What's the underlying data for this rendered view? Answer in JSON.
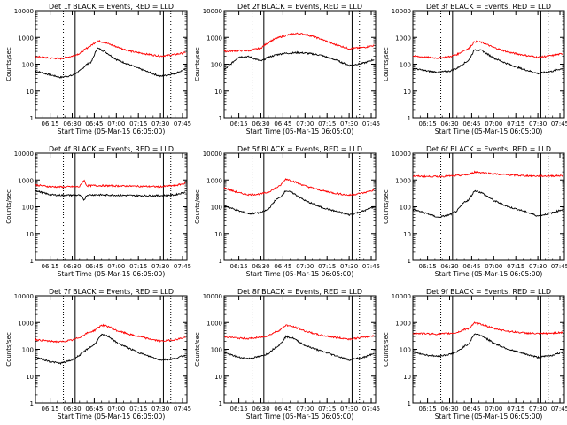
{
  "figure": {
    "xtick_labels": [
      "06:15",
      "06:30",
      "06:45",
      "07:00",
      "07:15",
      "07:30",
      "07:45"
    ],
    "ytick_labels": [
      "1",
      "10",
      "100",
      "1000",
      "10000"
    ],
    "ylabel": "Counts/sec",
    "xlabel": "Start Time (05-Mar-15 06:05:00)",
    "series_colors": {
      "Events": "#000000",
      "LLD": "#ff0000"
    },
    "scale": "log",
    "grid": false
  },
  "chart_data": [
    {
      "type": "line",
      "title": "Det 1f BLACK = Events, RED = LLD",
      "xlabel": "Start Time (05-Mar-15 06:05:00)",
      "ylabel": "Counts/sec",
      "yscale": "log",
      "ylim": [
        1,
        10000
      ],
      "xlim": [
        "06:05",
        "07:48"
      ],
      "vlines_dotted": [
        "06:24",
        "07:37"
      ],
      "vlines_solid": [
        "06:32",
        "07:32"
      ],
      "x": [
        "06:05",
        "06:15",
        "06:22",
        "06:30",
        "06:35",
        "06:40",
        "06:43",
        "06:47",
        "06:52",
        "07:00",
        "07:10",
        "07:20",
        "07:30",
        "07:40",
        "07:47"
      ],
      "series": [
        {
          "name": "Events",
          "values": [
            55,
            40,
            32,
            38,
            55,
            100,
            120,
            400,
            300,
            150,
            90,
            55,
            35,
            45,
            65
          ]
        },
        {
          "name": "LLD",
          "values": [
            190,
            170,
            160,
            200,
            250,
            400,
            500,
            750,
            650,
            450,
            300,
            240,
            200,
            230,
            270
          ]
        }
      ]
    },
    {
      "type": "line",
      "title": "Det 2f BLACK = Events, RED = LLD",
      "xlabel": "Start Time (05-Mar-15 06:05:00)",
      "ylabel": "Counts/sec",
      "yscale": "log",
      "ylim": [
        1,
        10000
      ],
      "xlim": [
        "06:05",
        "07:48"
      ],
      "vlines_dotted": [
        "06:24",
        "07:37"
      ],
      "vlines_solid": [
        "06:32",
        "07:32"
      ],
      "x": [
        "06:05",
        "06:15",
        "06:22",
        "06:30",
        "06:35",
        "06:40",
        "06:45",
        "06:50",
        "06:55",
        "07:00",
        "07:05",
        "07:10",
        "07:20",
        "07:30",
        "07:40",
        "07:47"
      ],
      "series": [
        {
          "name": "Events",
          "values": [
            60,
            190,
            190,
            130,
            180,
            220,
            250,
            260,
            270,
            260,
            240,
            220,
            150,
            90,
            110,
            150
          ]
        },
        {
          "name": "LLD",
          "values": [
            300,
            320,
            320,
            400,
            650,
            900,
            1100,
            1300,
            1400,
            1300,
            1100,
            900,
            550,
            380,
            420,
            500
          ]
        }
      ]
    },
    {
      "type": "line",
      "title": "Det 3f BLACK = Events, RED = LLD",
      "xlabel": "Start Time (05-Mar-15 06:05:00)",
      "ylabel": "Counts/sec",
      "yscale": "log",
      "ylim": [
        1,
        10000
      ],
      "xlim": [
        "06:05",
        "07:48"
      ],
      "vlines_dotted": [
        "06:24",
        "07:37"
      ],
      "vlines_solid": [
        "06:32",
        "07:32"
      ],
      "x": [
        "06:05",
        "06:15",
        "06:22",
        "06:30",
        "06:35",
        "06:40",
        "06:43",
        "06:47",
        "06:52",
        "07:00",
        "07:10",
        "07:20",
        "07:30",
        "07:40",
        "07:47"
      ],
      "series": [
        {
          "name": "Events",
          "values": [
            70,
            55,
            50,
            55,
            70,
            110,
            140,
            350,
            320,
            170,
            100,
            65,
            45,
            55,
            70
          ]
        },
        {
          "name": "LLD",
          "values": [
            200,
            180,
            170,
            190,
            230,
            330,
            380,
            700,
            650,
            420,
            280,
            220,
            180,
            210,
            250
          ]
        }
      ]
    },
    {
      "type": "line",
      "title": "Det 4f BLACK = Events, RED = LLD",
      "xlabel": "Start Time (05-Mar-15 06:05:00)",
      "ylabel": "Counts/sec",
      "yscale": "log",
      "ylim": [
        1,
        10000
      ],
      "xlim": [
        "06:05",
        "07:48"
      ],
      "vlines_dotted": [
        "06:24",
        "07:37"
      ],
      "vlines_solid": [
        "06:32",
        "07:32"
      ],
      "x": [
        "06:05",
        "06:15",
        "06:22",
        "06:30",
        "06:35",
        "06:38",
        "06:40",
        "06:45",
        "07:00",
        "07:15",
        "07:30",
        "07:40",
        "07:47"
      ],
      "series": [
        {
          "name": "Events",
          "values": [
            400,
            280,
            270,
            270,
            270,
            180,
            270,
            280,
            270,
            260,
            260,
            280,
            350
          ]
        },
        {
          "name": "LLD",
          "values": [
            650,
            560,
            550,
            560,
            560,
            1000,
            600,
            620,
            600,
            580,
            560,
            620,
            750
          ]
        }
      ]
    },
    {
      "type": "line",
      "title": "Det 5f BLACK = Events, RED = LLD",
      "xlabel": "Start Time (05-Mar-15 06:05:00)",
      "ylabel": "Counts/sec",
      "yscale": "log",
      "ylim": [
        1,
        10000
      ],
      "xlim": [
        "06:05",
        "07:48"
      ],
      "vlines_dotted": [
        "06:24",
        "07:37"
      ],
      "vlines_solid": [
        "06:32",
        "07:32"
      ],
      "x": [
        "06:05",
        "06:15",
        "06:22",
        "06:30",
        "06:35",
        "06:40",
        "06:43",
        "06:47",
        "06:52",
        "07:00",
        "07:10",
        "07:20",
        "07:30",
        "07:40",
        "07:47"
      ],
      "series": [
        {
          "name": "Events",
          "values": [
            110,
            70,
            55,
            60,
            80,
            180,
            220,
            400,
            320,
            170,
            100,
            70,
            50,
            70,
            100
          ]
        },
        {
          "name": "LLD",
          "values": [
            500,
            330,
            280,
            300,
            350,
            500,
            600,
            1100,
            900,
            600,
            420,
            320,
            270,
            330,
            420
          ]
        }
      ]
    },
    {
      "type": "line",
      "title": "Det 6f BLACK = Events, RED = LLD",
      "xlabel": "Start Time (05-Mar-15 06:05:00)",
      "ylabel": "Counts/sec",
      "yscale": "log",
      "ylim": [
        1,
        10000
      ],
      "xlim": [
        "06:05",
        "07:48"
      ],
      "vlines_dotted": [
        "06:24",
        "07:37"
      ],
      "vlines_solid": [
        "06:32",
        "07:32"
      ],
      "x": [
        "06:05",
        "06:15",
        "06:22",
        "06:30",
        "06:35",
        "06:40",
        "06:43",
        "06:47",
        "06:52",
        "07:00",
        "07:10",
        "07:20",
        "07:30",
        "07:40",
        "07:47"
      ],
      "series": [
        {
          "name": "Events",
          "values": [
            80,
            55,
            40,
            50,
            70,
            150,
            180,
            400,
            330,
            170,
            100,
            70,
            45,
            60,
            80
          ]
        },
        {
          "name": "LLD",
          "values": [
            1400,
            1350,
            1350,
            1400,
            1450,
            1550,
            1600,
            2000,
            1900,
            1700,
            1550,
            1450,
            1400,
            1420,
            1450
          ]
        }
      ]
    },
    {
      "type": "line",
      "title": "Det 7f BLACK = Events, RED = LLD",
      "xlabel": "Start Time (05-Mar-15 06:05:00)",
      "ylabel": "Counts/sec",
      "yscale": "log",
      "ylim": [
        1,
        10000
      ],
      "xlim": [
        "06:05",
        "07:48"
      ],
      "vlines_dotted": [
        "06:24",
        "07:37"
      ],
      "vlines_solid": [
        "06:32",
        "07:32"
      ],
      "x": [
        "06:05",
        "06:15",
        "06:22",
        "06:30",
        "06:35",
        "06:40",
        "06:45",
        "06:50",
        "06:55",
        "07:00",
        "07:10",
        "07:20",
        "07:30",
        "07:40",
        "07:47"
      ],
      "series": [
        {
          "name": "Events",
          "values": [
            50,
            35,
            30,
            40,
            60,
            100,
            150,
            350,
            300,
            180,
            100,
            60,
            40,
            45,
            60
          ]
        },
        {
          "name": "LLD",
          "values": [
            230,
            200,
            190,
            220,
            280,
            400,
            500,
            800,
            700,
            500,
            350,
            260,
            200,
            230,
            280
          ]
        }
      ]
    },
    {
      "type": "line",
      "title": "Det 8f BLACK = Events, RED = LLD",
      "xlabel": "Start Time (05-Mar-15 06:05:00)",
      "ylabel": "Counts/sec",
      "yscale": "log",
      "ylim": [
        1,
        10000
      ],
      "xlim": [
        "06:05",
        "07:48"
      ],
      "vlines_dotted": [
        "06:24",
        "07:37"
      ],
      "vlines_solid": [
        "06:32",
        "07:32"
      ],
      "x": [
        "06:05",
        "06:15",
        "06:22",
        "06:30",
        "06:35",
        "06:40",
        "06:43",
        "06:47",
        "06:52",
        "07:00",
        "07:10",
        "07:20",
        "07:30",
        "07:40",
        "07:47"
      ],
      "series": [
        {
          "name": "Events",
          "values": [
            75,
            50,
            45,
            55,
            70,
            120,
            150,
            300,
            260,
            140,
            90,
            60,
            40,
            50,
            70
          ]
        },
        {
          "name": "LLD",
          "values": [
            300,
            260,
            250,
            280,
            320,
            450,
            520,
            800,
            700,
            480,
            340,
            280,
            240,
            280,
            330
          ]
        }
      ]
    },
    {
      "type": "line",
      "title": "Det 9f BLACK = Events, RED = LLD",
      "xlabel": "Start Time (05-Mar-15 06:05:00)",
      "ylabel": "Counts/sec",
      "yscale": "log",
      "ylim": [
        1,
        10000
      ],
      "xlim": [
        "06:05",
        "07:48"
      ],
      "vlines_dotted": [
        "06:24",
        "07:37"
      ],
      "vlines_solid": [
        "06:32",
        "07:32"
      ],
      "x": [
        "06:05",
        "06:15",
        "06:22",
        "06:30",
        "06:35",
        "06:40",
        "06:43",
        "06:47",
        "06:52",
        "07:00",
        "07:10",
        "07:20",
        "07:30",
        "07:40",
        "07:47"
      ],
      "series": [
        {
          "name": "Events",
          "values": [
            80,
            60,
            55,
            65,
            80,
            130,
            160,
            380,
            320,
            170,
            100,
            70,
            50,
            60,
            80
          ]
        },
        {
          "name": "LLD",
          "values": [
            400,
            380,
            370,
            390,
            420,
            550,
            600,
            950,
            850,
            600,
            470,
            410,
            380,
            400,
            430
          ]
        }
      ]
    }
  ]
}
